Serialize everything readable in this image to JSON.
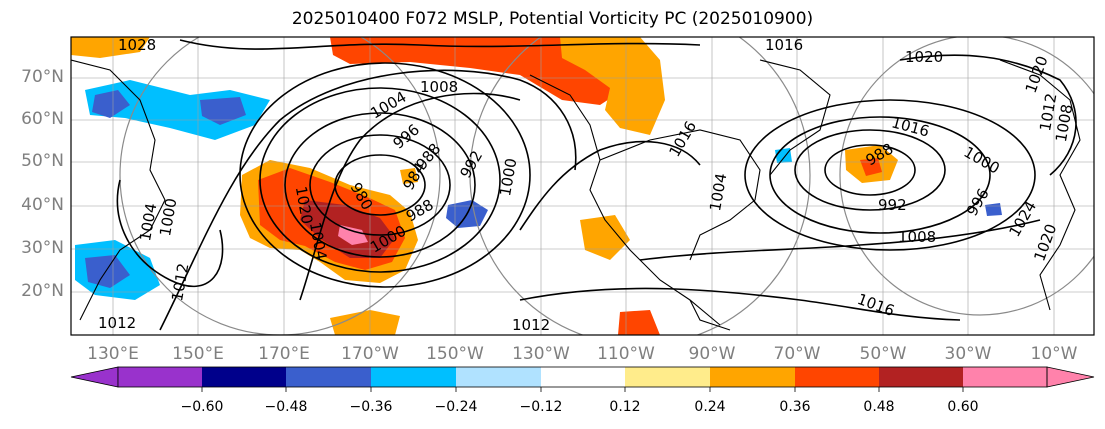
{
  "title": "2025010400 F072 MSLP, Potential Vorticity PC (2025010900)",
  "lat_labels": [
    "70°N",
    "60°N",
    "50°N",
    "40°N",
    "30°N",
    "20°N"
  ],
  "lon_labels": [
    "130°E",
    "150°E",
    "170°E",
    "170°W",
    "150°W",
    "130°W",
    "110°W",
    "90°W",
    "70°W",
    "50°W",
    "30°W",
    "10°W"
  ],
  "isobar_labels": [
    "1028",
    "1020",
    "1016",
    "1020",
    "1016",
    "1008",
    "1004",
    "996",
    "992",
    "988",
    "984",
    "980",
    "988",
    "1000",
    "1004",
    "1000",
    "1004",
    "1012",
    "1016",
    "1012",
    "1008",
    "992",
    "1000",
    "996",
    "1012",
    "1020",
    "1024",
    "1016",
    "988",
    "1000",
    "1012",
    "1004",
    "1020",
    "1008"
  ],
  "colorbar": {
    "ticks": [
      "−0.60",
      "−0.48",
      "−0.36",
      "−0.24",
      "−0.12",
      "0.12",
      "0.24",
      "0.36",
      "0.48",
      "0.60"
    ],
    "colors": [
      "#9932cc",
      "#00008b",
      "#3a5fcd",
      "#00bfff",
      "#b0e2ff",
      "#ffffff",
      "#ffec8b",
      "#ffa500",
      "#ff4500",
      "#b22222",
      "#ff82ab"
    ]
  },
  "colors": {
    "label_gray": "#7f7f7f",
    "contour": "#000000",
    "grid": "#9e9e9e"
  }
}
